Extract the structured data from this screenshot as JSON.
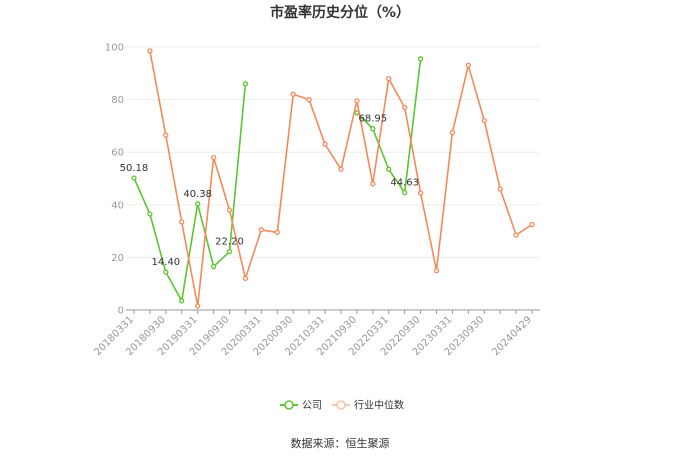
{
  "chart_data": {
    "type": "line",
    "title": "市盈率历史分位（%）",
    "xlabel": "",
    "ylabel": "",
    "ylim": [
      0,
      100
    ],
    "yticks": [
      "0",
      "20",
      "40",
      "60",
      "80",
      "100"
    ],
    "grid": true,
    "legend_position": "bottom",
    "x_labels": [
      "20180331",
      "20180930",
      "20190331",
      "20190930",
      "20200331",
      "20200930",
      "20210331",
      "20210930",
      "20220331",
      "20220930",
      "20230331",
      "20230930",
      "20240429"
    ],
    "x": [
      "20180331",
      "20180630",
      "20180930",
      "20181231",
      "20190331",
      "20190630",
      "20190930",
      "20191231",
      "20200331",
      "20200630",
      "20200930",
      "20201231",
      "20210331",
      "20210630",
      "20210930",
      "20211231",
      "20220331",
      "20220630",
      "20220930",
      "20221231",
      "20230331",
      "20230630",
      "20230930",
      "20231231",
      "20240331",
      "20240429"
    ],
    "series": [
      {
        "name": "公司",
        "color": "#5cc531",
        "values": [
          50.18,
          36.5,
          14.4,
          3.5,
          40.38,
          16.5,
          22.2,
          86.0,
          null,
          null,
          null,
          null,
          null,
          null,
          75.0,
          68.95,
          53.5,
          44.63,
          95.5,
          null,
          null,
          null,
          null,
          null,
          null,
          null
        ]
      },
      {
        "name": "行业中位数",
        "color": "#f48a5a",
        "values": [
          null,
          98.5,
          66.5,
          33.5,
          1.5,
          58.0,
          38.0,
          12.0,
          30.5,
          29.5,
          82.0,
          80.0,
          63.0,
          53.5,
          79.5,
          48.0,
          88.0,
          77.0,
          44.5,
          15.0,
          67.5,
          93.0,
          72.0,
          46.0,
          28.5,
          32.5
        ]
      }
    ],
    "data_labels": [
      {
        "series": 0,
        "index": 0,
        "text": "50.18"
      },
      {
        "series": 0,
        "index": 2,
        "text": "14.40"
      },
      {
        "series": 0,
        "index": 4,
        "text": "40.38"
      },
      {
        "series": 0,
        "index": 6,
        "text": "22.20"
      },
      {
        "series": 0,
        "index": 15,
        "text": "68.95"
      },
      {
        "series": 0,
        "index": 17,
        "text": "44.63"
      }
    ]
  },
  "source_label": "数据来源：恒生聚源"
}
